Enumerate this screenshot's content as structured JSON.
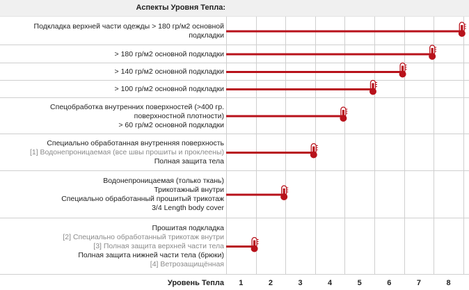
{
  "header_title": "Аспекты Уровня Тепла:",
  "xlabel": "Уровень Тепла",
  "colors": {
    "bar": "#b8121b",
    "grid": "#cfcfcf",
    "gray_text": "#8a8a8a"
  },
  "chart_data": {
    "type": "bar",
    "orientation": "horizontal",
    "xlabel": "Уровень Тепла",
    "x_ticks": [
      1,
      2,
      3,
      4,
      5,
      6,
      7,
      8
    ],
    "xlim": [
      0,
      8
    ],
    "rows": [
      {
        "value": 8,
        "lines": [
          {
            "text": "Подкладка верхней части одежды > 180 гр/м2 основной",
            "gray": false
          },
          {
            "text": "подкладки",
            "gray": false
          }
        ]
      },
      {
        "value": 7,
        "lines": [
          {
            "text": "> 180 гр/м2 основной подкладки",
            "gray": false
          }
        ]
      },
      {
        "value": 6,
        "lines": [
          {
            "text": "> 140 гр/м2 основной подкладки",
            "gray": false
          }
        ]
      },
      {
        "value": 5,
        "lines": [
          {
            "text": "> 100 гр/м2 основной подкладки",
            "gray": false
          }
        ]
      },
      {
        "value": 4,
        "lines": [
          {
            "text": "Спецобработка внутренних поверхностей (>400 гр.",
            "gray": false
          },
          {
            "text": "поверхностной плотности)",
            "gray": false
          },
          {
            "text": "> 60 гр/м2 основной подкладки",
            "gray": false
          }
        ]
      },
      {
        "value": 3,
        "lines": [
          {
            "text": "Специально обработанная внутренняя поверхность",
            "gray": false
          },
          {
            "text": "[1] Водонепроницаемая (все швы прошиты и проклеены)",
            "gray": true
          },
          {
            "text": "Полная защита тела",
            "gray": false
          }
        ]
      },
      {
        "value": 2,
        "lines": [
          {
            "text": "Водонепроницаемая (только ткань)",
            "gray": false
          },
          {
            "text": "Трикотажный внутри",
            "gray": false
          },
          {
            "text": "Специально обработанный прошитый трикотаж",
            "gray": false
          },
          {
            "text": "3/4 Length body cover",
            "gray": false
          }
        ]
      },
      {
        "value": 1,
        "lines": [
          {
            "text": "Прошитая подкладка",
            "gray": false
          },
          {
            "text": "[2] Специально обработанный трикотаж внутри",
            "gray": true
          },
          {
            "text": "[3] Полная защита верхней части тела",
            "gray": true
          },
          {
            "text": "Полная защита нижней части тела (брюки)",
            "gray": false
          },
          {
            "text": "[4] Ветрозащищённая",
            "gray": true
          }
        ]
      }
    ]
  }
}
